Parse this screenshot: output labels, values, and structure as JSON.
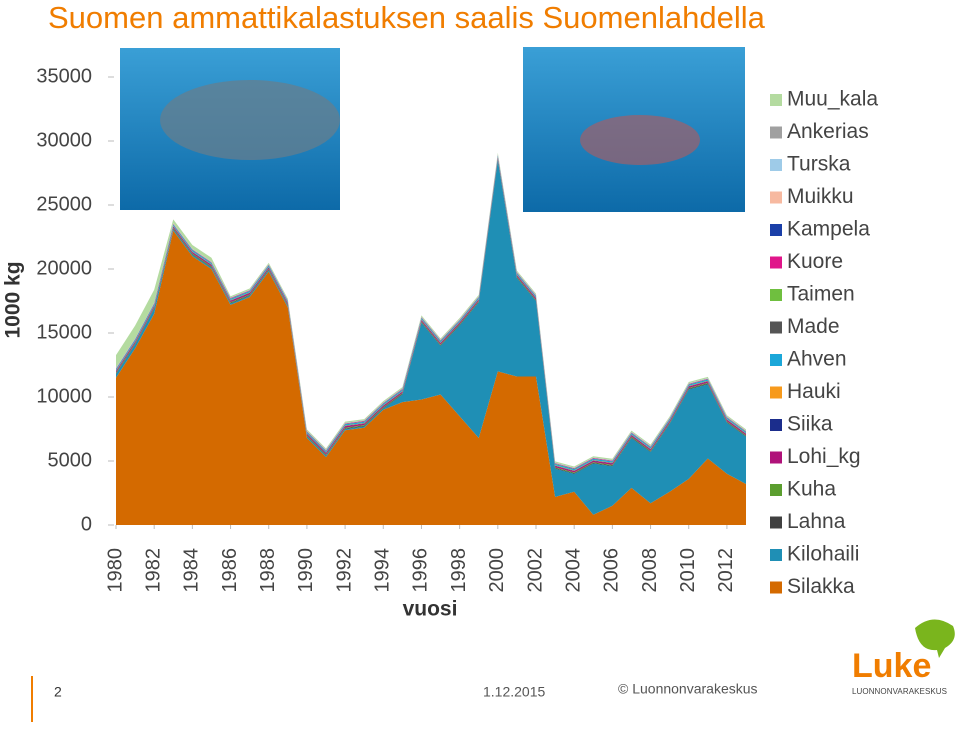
{
  "chart_data": {
    "type": "stacked_area",
    "title": "Suomen ammattikalastuksen saalis Suomenlahdella",
    "xlabel": "vuosi",
    "ylabel": "1000 kg",
    "x": [
      1980,
      1981,
      1982,
      1983,
      1984,
      1985,
      1986,
      1987,
      1988,
      1989,
      1990,
      1991,
      1992,
      1993,
      1994,
      1995,
      1996,
      1997,
      1998,
      1999,
      2000,
      2001,
      2002,
      2003,
      2004,
      2005,
      2006,
      2007,
      2008,
      2009,
      2010,
      2011,
      2012,
      2013
    ],
    "xlim": [
      1980,
      2013
    ],
    "xticks": [
      1980,
      1982,
      1984,
      1986,
      1988,
      1990,
      1992,
      1994,
      1996,
      1998,
      2000,
      2002,
      2004,
      2006,
      2008,
      2010,
      2012
    ],
    "ylim": [
      0,
      35000
    ],
    "yticks": [
      0,
      5000,
      10000,
      15000,
      20000,
      25000,
      30000,
      35000
    ],
    "series": [
      {
        "name": "Silakka",
        "color": "#d46a00",
        "values": [
          11500,
          13800,
          16500,
          23000,
          21000,
          20000,
          17200,
          17800,
          19800,
          17000,
          6800,
          5300,
          7400,
          7600,
          9000,
          9600,
          9800,
          10200,
          8500,
          6800,
          12000,
          11600,
          11600,
          2200,
          2600,
          800,
          1500,
          2900,
          1700,
          2600,
          3600,
          5200,
          4000,
          3200
        ]
      },
      {
        "name": "Kilohaili",
        "color": "#1f8fb5",
        "values": [
          300,
          300,
          400,
          100,
          100,
          100,
          100,
          100,
          100,
          100,
          100,
          100,
          100,
          100,
          100,
          600,
          6000,
          3800,
          7100,
          10600,
          16500,
          7700,
          5900,
          2200,
          1400,
          4000,
          3100,
          3900,
          4000,
          5300,
          7000,
          5800,
          4000,
          3700
        ]
      },
      {
        "name": "Lahna",
        "color": "#404040",
        "values": [
          50,
          50,
          50,
          50,
          50,
          50,
          50,
          50,
          50,
          50,
          50,
          50,
          50,
          50,
          50,
          50,
          50,
          50,
          50,
          50,
          50,
          50,
          50,
          50,
          50,
          50,
          50,
          50,
          50,
          50,
          50,
          50,
          50,
          50
        ]
      },
      {
        "name": "Kuha",
        "color": "#5b9e2f",
        "values": [
          60,
          60,
          60,
          60,
          60,
          60,
          60,
          60,
          60,
          60,
          60,
          60,
          60,
          60,
          60,
          60,
          60,
          60,
          60,
          60,
          60,
          60,
          60,
          60,
          60,
          60,
          60,
          60,
          60,
          60,
          60,
          60,
          60,
          60
        ]
      },
      {
        "name": "Lohi_kg",
        "color": "#b0127a",
        "values": [
          100,
          100,
          100,
          100,
          100,
          100,
          100,
          100,
          100,
          100,
          100,
          100,
          100,
          100,
          100,
          100,
          100,
          100,
          100,
          100,
          100,
          100,
          100,
          100,
          100,
          100,
          100,
          100,
          100,
          100,
          100,
          100,
          100,
          100
        ]
      },
      {
        "name": "Siika",
        "color": "#1b2d8c",
        "values": [
          30,
          30,
          30,
          30,
          30,
          30,
          30,
          30,
          30,
          30,
          30,
          30,
          30,
          30,
          30,
          30,
          30,
          30,
          30,
          30,
          30,
          30,
          30,
          30,
          30,
          30,
          30,
          30,
          30,
          30,
          30,
          30,
          30,
          30
        ]
      },
      {
        "name": "Hauki",
        "color": "#f79a1c",
        "values": [
          30,
          30,
          30,
          30,
          30,
          30,
          30,
          30,
          30,
          30,
          30,
          30,
          30,
          30,
          30,
          30,
          30,
          30,
          30,
          30,
          30,
          30,
          30,
          30,
          30,
          30,
          30,
          30,
          30,
          30,
          30,
          30,
          30,
          30
        ]
      },
      {
        "name": "Ahven",
        "color": "#1ba7d9",
        "values": [
          100,
          100,
          100,
          100,
          100,
          100,
          100,
          100,
          100,
          100,
          100,
          100,
          100,
          100,
          100,
          100,
          100,
          100,
          100,
          100,
          100,
          100,
          100,
          100,
          100,
          100,
          100,
          100,
          100,
          100,
          100,
          100,
          100,
          100
        ]
      },
      {
        "name": "Made",
        "color": "#555555",
        "values": [
          20,
          20,
          20,
          20,
          20,
          20,
          20,
          20,
          20,
          20,
          20,
          20,
          20,
          20,
          20,
          20,
          20,
          20,
          20,
          20,
          20,
          20,
          20,
          20,
          20,
          20,
          20,
          20,
          20,
          20,
          20,
          20,
          20,
          20
        ]
      },
      {
        "name": "Taimen",
        "color": "#6fbf3f",
        "values": [
          10,
          10,
          10,
          10,
          10,
          10,
          10,
          10,
          10,
          10,
          10,
          10,
          10,
          10,
          10,
          10,
          10,
          10,
          10,
          10,
          10,
          10,
          10,
          10,
          10,
          10,
          10,
          10,
          10,
          10,
          10,
          10,
          10,
          10
        ]
      },
      {
        "name": "Kuore",
        "color": "#e0158a",
        "values": [
          30,
          30,
          30,
          30,
          30,
          30,
          30,
          30,
          30,
          30,
          30,
          30,
          30,
          30,
          30,
          30,
          30,
          30,
          30,
          30,
          30,
          30,
          30,
          30,
          30,
          30,
          30,
          30,
          30,
          30,
          30,
          30,
          30,
          30
        ]
      },
      {
        "name": "Kampela",
        "color": "#1a3fa8",
        "values": [
          10,
          10,
          10,
          10,
          10,
          10,
          10,
          10,
          10,
          10,
          10,
          10,
          10,
          10,
          10,
          10,
          10,
          10,
          10,
          10,
          10,
          10,
          10,
          10,
          10,
          10,
          10,
          10,
          10,
          10,
          10,
          10,
          10,
          10
        ]
      },
      {
        "name": "Muikku",
        "color": "#f7b9a0",
        "values": [
          10,
          10,
          10,
          10,
          10,
          10,
          10,
          10,
          10,
          10,
          10,
          10,
          10,
          10,
          10,
          10,
          10,
          10,
          10,
          10,
          10,
          10,
          10,
          10,
          10,
          10,
          10,
          10,
          10,
          10,
          10,
          10,
          10,
          10
        ]
      },
      {
        "name": "Turska",
        "color": "#9ecbe8",
        "values": [
          20,
          20,
          20,
          20,
          20,
          20,
          20,
          20,
          20,
          20,
          20,
          20,
          20,
          20,
          20,
          20,
          20,
          20,
          20,
          20,
          20,
          20,
          20,
          20,
          20,
          20,
          20,
          20,
          20,
          20,
          20,
          20,
          20,
          20
        ]
      },
      {
        "name": "Ankerias",
        "color": "#a0a0a0",
        "values": [
          5,
          5,
          5,
          5,
          5,
          5,
          5,
          5,
          5,
          5,
          5,
          5,
          5,
          5,
          5,
          5,
          5,
          5,
          5,
          5,
          5,
          5,
          5,
          5,
          5,
          5,
          5,
          5,
          5,
          5,
          5,
          5,
          5,
          5
        ]
      },
      {
        "name": "Muu_kala",
        "color": "#b4dba0",
        "values": [
          1000,
          1000,
          1000,
          300,
          300,
          300,
          100,
          100,
          100,
          100,
          100,
          100,
          100,
          100,
          100,
          100,
          100,
          100,
          100,
          100,
          100,
          100,
          100,
          100,
          100,
          100,
          100,
          100,
          100,
          100,
          100,
          100,
          100,
          100
        ]
      }
    ]
  },
  "footer": {
    "page": "2",
    "date": "1.12.2015",
    "copyright": "© Luonnonvarakeskus",
    "logo": "Luke",
    "logo_sub": "LUONNONVARAKESKUS"
  }
}
